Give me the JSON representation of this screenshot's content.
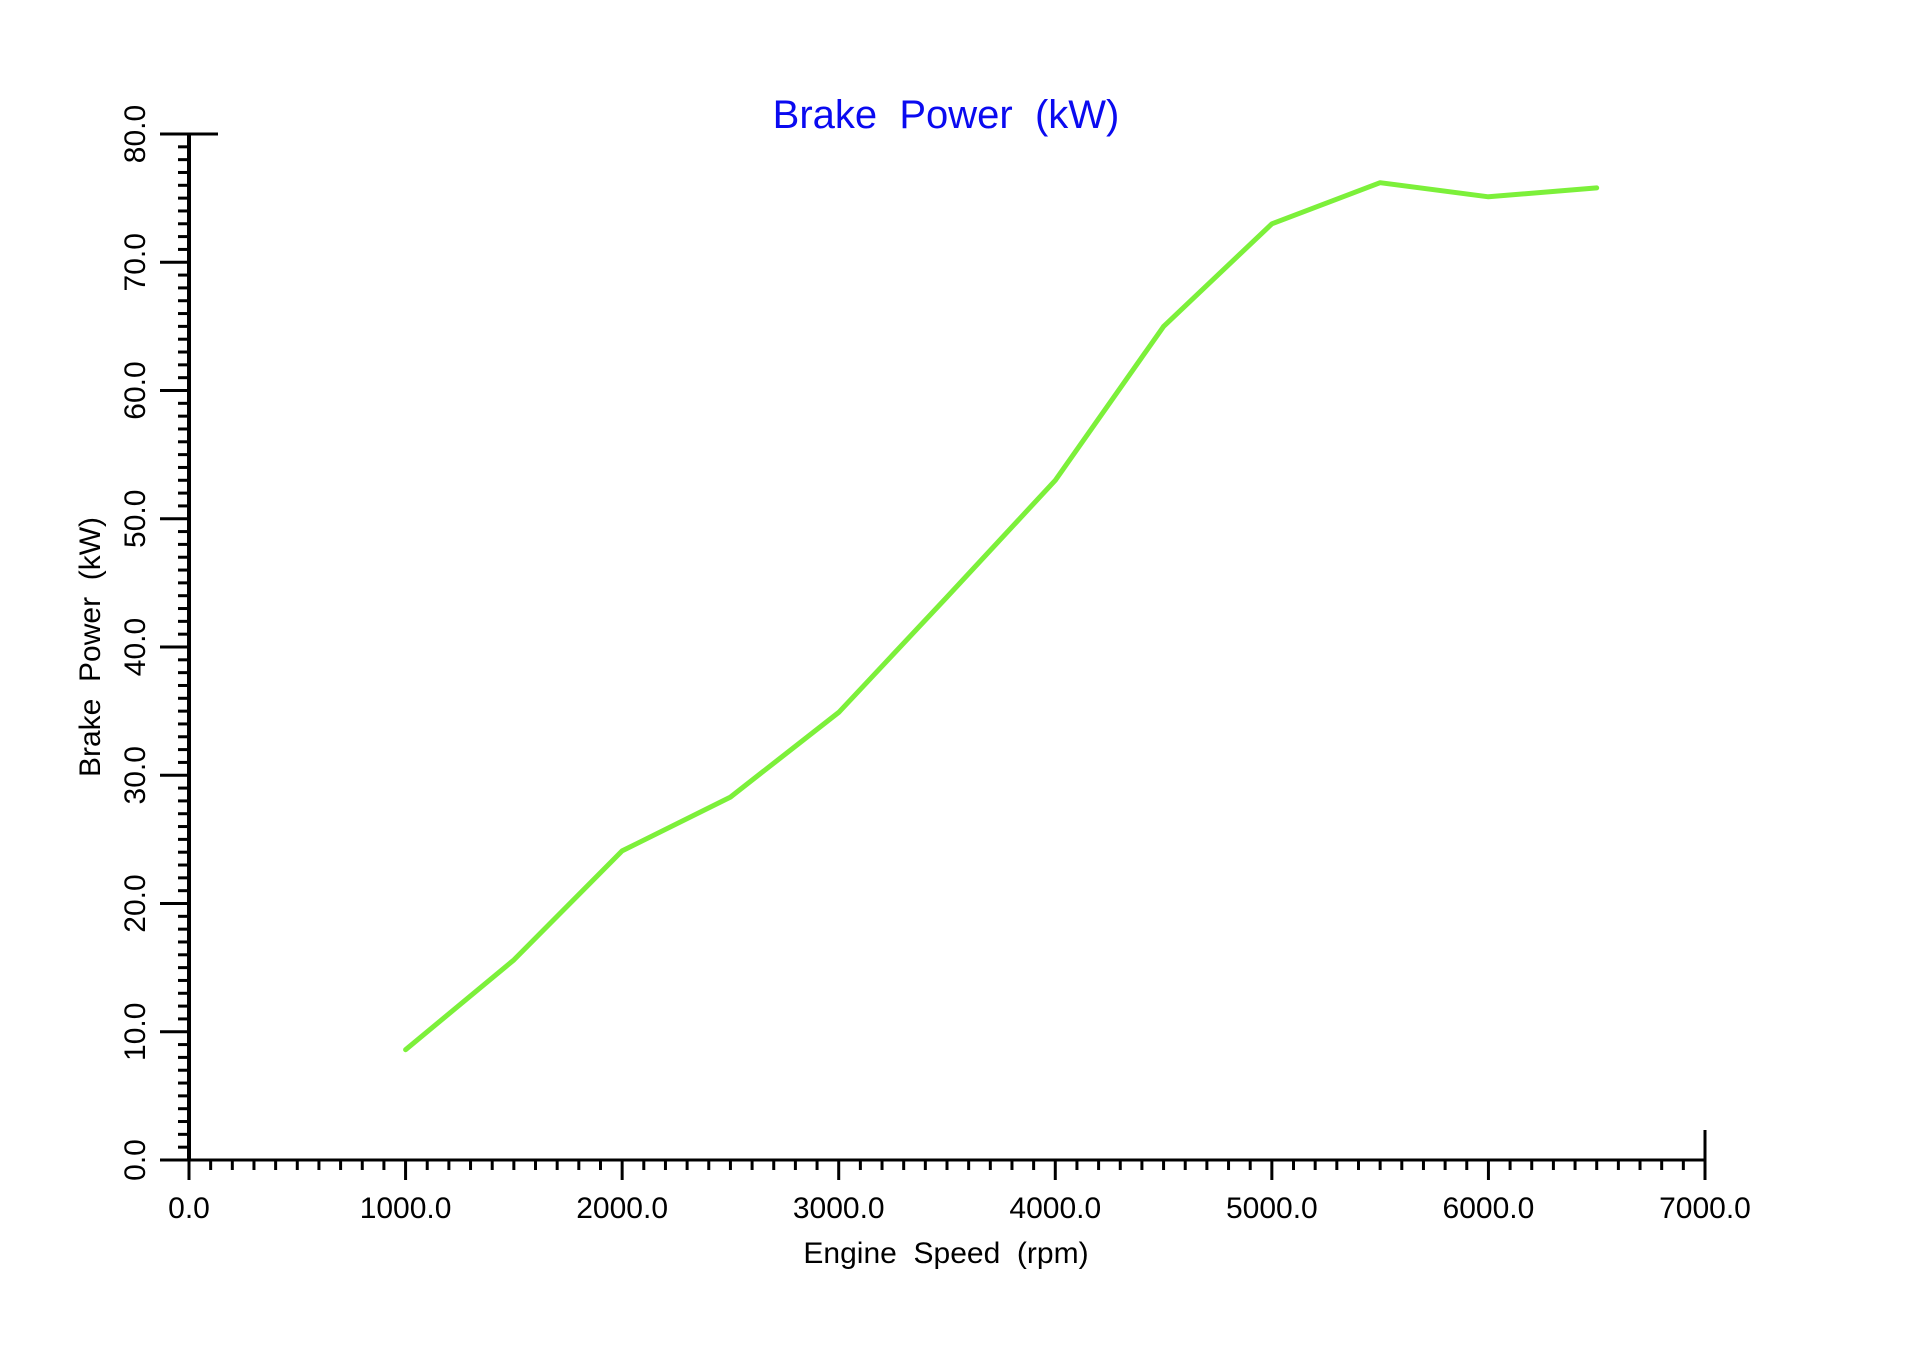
{
  "chart_data": {
    "type": "line",
    "title": "Brake  Power  (kW)",
    "xlabel": "Engine  Speed  (rpm)",
    "ylabel": "Brake  Power  (kW)",
    "xlim": [
      0,
      7000
    ],
    "ylim": [
      0,
      80
    ],
    "x_ticks": [
      "0.0",
      "1000.0",
      "2000.0",
      "3000.0",
      "4000.0",
      "5000.0",
      "6000.0",
      "7000.0"
    ],
    "y_ticks": [
      "0.0",
      "10.0",
      "20.0",
      "30.0",
      "40.0",
      "50.0",
      "60.0",
      "70.0",
      "80.0"
    ],
    "minor_ticks_per_major": 10,
    "grid": false,
    "legend": null,
    "series": [
      {
        "name": "Brake Power",
        "color": "#7cf03a",
        "x": [
          1000,
          1500,
          2000,
          2500,
          3000,
          3500,
          4000,
          4500,
          5000,
          5500,
          6000,
          6500
        ],
        "values": [
          8.6,
          15.6,
          24.1,
          28.3,
          34.9,
          43.9,
          53.0,
          65.0,
          73.0,
          76.2,
          75.1,
          75.8
        ]
      }
    ]
  },
  "colors": {
    "title": "#0a0af0",
    "axis": "#000000",
    "line": "#7cf03a",
    "background": "#ffffff"
  }
}
